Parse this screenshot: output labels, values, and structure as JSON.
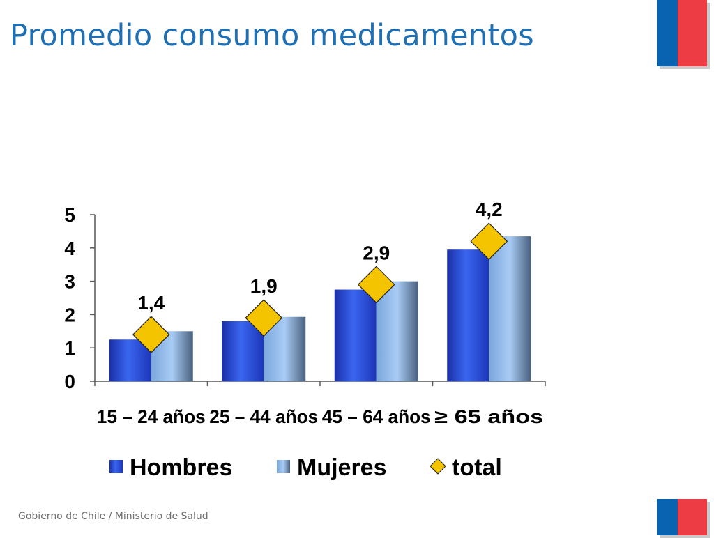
{
  "slide": {
    "title": "Promedio consumo medicamentos",
    "footer": "Gobierno de Chile / Ministerio de Salud"
  },
  "colors": {
    "title": "#1f6fb5",
    "hombres": "#2b4ed8",
    "mujeres": "#8fb8ea",
    "total": "#f5c400",
    "flag_blue": "#0a63b0",
    "flag_red": "#ee3c44"
  },
  "chart_data": {
    "type": "bar",
    "categories": [
      "15 – 24 años",
      "25 – 44 años",
      "45 – 64 años",
      "≥ 65 años"
    ],
    "series": [
      {
        "name": "Hombres",
        "type": "bar",
        "values": [
          1.25,
          1.8,
          2.75,
          3.95
        ]
      },
      {
        "name": "Mujeres",
        "type": "bar",
        "values": [
          1.5,
          1.93,
          3.0,
          4.35
        ]
      },
      {
        "name": "total",
        "type": "marker",
        "values": [
          1.4,
          1.9,
          2.9,
          4.2
        ],
        "labels": [
          "1,4",
          "1,9",
          "2,9",
          "4,2"
        ]
      }
    ],
    "yticks": [
      "0",
      "1",
      "2",
      "3",
      "4",
      "5"
    ],
    "ylim": [
      0,
      5
    ],
    "legend": "bottom"
  }
}
